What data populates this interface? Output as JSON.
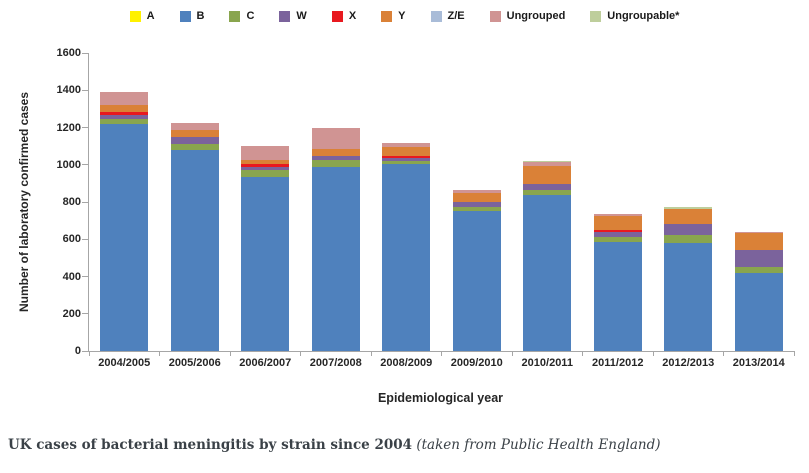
{
  "caption": {
    "bold": "UK cases of bacterial meningitis by strain since 2004",
    "italic": " (taken from Public Health England)"
  },
  "chart_data": {
    "type": "bar",
    "stacked": true,
    "title": "",
    "xlabel": "Epidemiological year",
    "ylabel": "Number of laboratory confirmed cases",
    "ylim": [
      0,
      1600
    ],
    "ytick_step": 200,
    "grid": false,
    "legend_position": "top",
    "axis_color": "#a6a6a6",
    "categories": [
      "2004/2005",
      "2005/2006",
      "2006/2007",
      "2007/2008",
      "2008/2009",
      "2009/2010",
      "2010/2011",
      "2011/2012",
      "2012/2013",
      "2013/2014"
    ],
    "series": [
      {
        "name": "A",
        "color": "#FFF100",
        "values": [
          0,
          0,
          0,
          0,
          0,
          0,
          0,
          0,
          0,
          0
        ]
      },
      {
        "name": "B",
        "color": "#4F81BD",
        "values": [
          1220,
          1078,
          935,
          990,
          1006,
          754,
          835,
          585,
          580,
          417
        ]
      },
      {
        "name": "C",
        "color": "#89A54E",
        "values": [
          25,
          35,
          38,
          37,
          16,
          21,
          27,
          27,
          42,
          32
        ]
      },
      {
        "name": "W",
        "color": "#7B639C",
        "values": [
          22,
          35,
          16,
          22,
          16,
          27,
          37,
          27,
          62,
          96
        ]
      },
      {
        "name": "X",
        "color": "#E8191F",
        "values": [
          18,
          0,
          16,
          0,
          11,
          0,
          0,
          10,
          0,
          0
        ]
      },
      {
        "name": "Y",
        "color": "#DA8137",
        "values": [
          35,
          40,
          21,
          37,
          48,
          48,
          96,
          78,
          80,
          86
        ]
      },
      {
        "name": "Z/E",
        "color": "#A9BCD8",
        "values": [
          0,
          0,
          0,
          0,
          0,
          0,
          0,
          0,
          0,
          0
        ]
      },
      {
        "name": "Ungrouped",
        "color": "#D09493",
        "values": [
          70,
          37,
          74,
          112,
          21,
          14,
          19,
          8,
          0,
          8
        ]
      },
      {
        "name": "Ungroupable*",
        "color": "#BECE9C",
        "values": [
          0,
          0,
          0,
          0,
          0,
          0,
          8,
          0,
          11,
          0
        ]
      }
    ],
    "approx_totals": [
      1390,
      1225,
      1100,
      1198,
      1118,
      864,
      1022,
      735,
      775,
      639
    ]
  }
}
